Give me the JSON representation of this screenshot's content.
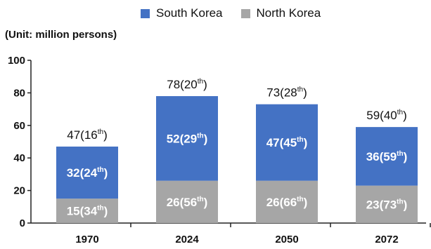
{
  "chart_data": {
    "type": "bar",
    "stacked": true,
    "unit_note": "(Unit: million persons)",
    "categories": [
      "1970",
      "2024",
      "2050",
      "2072"
    ],
    "series": [
      {
        "name": "South Korea",
        "color": "#4472C4",
        "values": [
          32,
          52,
          47,
          36
        ],
        "labels": [
          {
            "value": "32",
            "rank": "24",
            "sup": "th"
          },
          {
            "value": "52",
            "rank": "29",
            "sup": "th"
          },
          {
            "value": "47",
            "rank": "45",
            "sup": "th"
          },
          {
            "value": "36",
            "rank": "59",
            "sup": "th"
          }
        ]
      },
      {
        "name": "North Korea",
        "color": "#A6A6A6",
        "values": [
          15,
          26,
          26,
          23
        ],
        "labels": [
          {
            "value": "15",
            "rank": "34",
            "sup": "th"
          },
          {
            "value": "26",
            "rank": "56",
            "sup": "th"
          },
          {
            "value": "26",
            "rank": "66",
            "sup": "th"
          },
          {
            "value": "23",
            "rank": "73",
            "sup": "th"
          }
        ]
      }
    ],
    "totals": [
      {
        "value": "47",
        "rank": "16",
        "sup": "th"
      },
      {
        "value": "78",
        "rank": "20",
        "sup": "th"
      },
      {
        "value": "73",
        "rank": "28",
        "sup": "th"
      },
      {
        "value": "59",
        "rank": "40",
        "sup": "th"
      }
    ],
    "ylim": [
      0,
      100
    ],
    "yticks": [
      "0",
      "20",
      "40",
      "60",
      "80",
      "100"
    ],
    "grid": false,
    "legend_position": "top"
  }
}
